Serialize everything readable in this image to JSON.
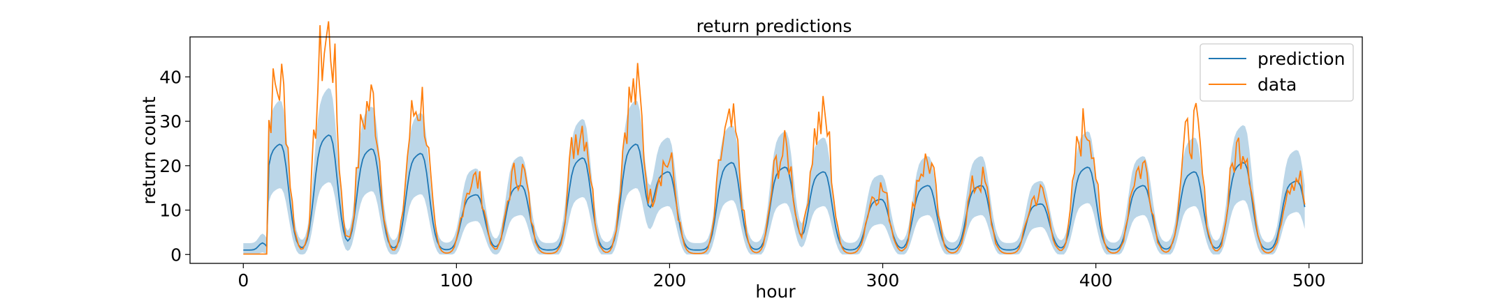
{
  "chart_data": {
    "type": "line",
    "title": "return predictions",
    "xlabel": "hour",
    "ylabel": "return count",
    "xlim": [
      -25,
      525
    ],
    "ylim": [
      -2,
      49
    ],
    "x_ticks": [
      0,
      100,
      200,
      300,
      400,
      500
    ],
    "y_ticks": [
      0,
      10,
      20,
      30,
      40
    ],
    "grid": false,
    "legend_position": "top-right",
    "series": [
      {
        "name": "prediction",
        "color": "#1f77b4"
      },
      {
        "name": "data",
        "color": "#ff7f0e"
      }
    ],
    "band": {
      "color": "#1f77b4",
      "opacity": 0.3
    },
    "x_start": 0,
    "x_end": 498,
    "daily_peaks": [
      {
        "hour": 18,
        "data": 37,
        "pred": 24
      },
      {
        "hour": 41,
        "data": 47,
        "pred": 26
      },
      {
        "hour": 61,
        "data": 33,
        "pred": 23
      },
      {
        "hour": 84,
        "data": 33,
        "pred": 22
      },
      {
        "hour": 110,
        "data": 16,
        "pred": 13
      },
      {
        "hour": 131,
        "data": 18,
        "pred": 15
      },
      {
        "hour": 160,
        "data": 28,
        "pred": 21
      },
      {
        "hour": 185,
        "data": 35,
        "pred": 24
      },
      {
        "hour": 200,
        "data": 20,
        "pred": 18
      },
      {
        "hour": 230,
        "data": 27,
        "pred": 20
      },
      {
        "hour": 255,
        "data": 22,
        "pred": 19
      },
      {
        "hour": 273,
        "data": 29,
        "pred": 18
      },
      {
        "hour": 300,
        "data": 14,
        "pred": 12
      },
      {
        "hour": 322,
        "data": 20,
        "pred": 15
      },
      {
        "hour": 347,
        "data": 16,
        "pred": 15
      },
      {
        "hour": 375,
        "data": 13,
        "pred": 11
      },
      {
        "hour": 397,
        "data": 28,
        "pred": 19
      },
      {
        "hour": 423,
        "data": 19,
        "pred": 15
      },
      {
        "hour": 447,
        "data": 27,
        "pred": 18
      },
      {
        "hour": 470,
        "data": 24,
        "pred": 20
      },
      {
        "hour": 495,
        "data": 17,
        "pred": 16
      }
    ]
  }
}
